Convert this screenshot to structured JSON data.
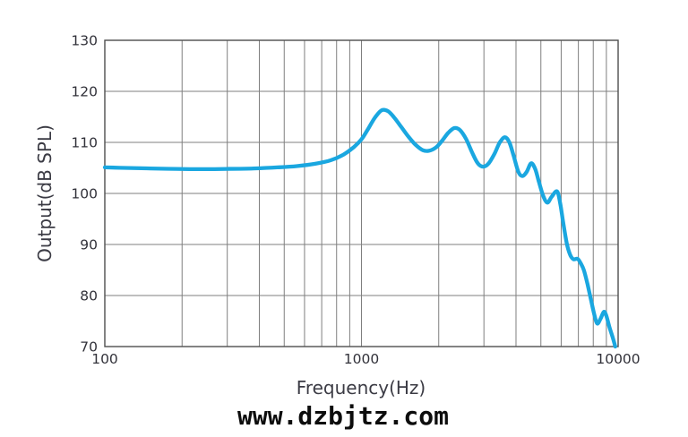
{
  "watermark": {
    "text": "www.dzbjtz.com"
  },
  "chart_data": {
    "type": "line",
    "xlabel": "Frequency(Hz)",
    "ylabel": "Output(dB SPL)",
    "x_scale": "log",
    "xlim": [
      100,
      10000
    ],
    "ylim": [
      70,
      130
    ],
    "yticks": [
      70,
      80,
      90,
      100,
      110,
      120,
      130
    ],
    "xticks": [
      {
        "value": 100,
        "label": "100"
      },
      {
        "value": 1000,
        "label": "1000"
      },
      {
        "value": 10000,
        "label": "10000"
      }
    ],
    "grid": true,
    "x_minor_gridlines": true,
    "legend": "none",
    "colors": {
      "curve": "#1aa7e0",
      "grid": "#7f7f7f",
      "border": "#4e4e4e",
      "tick_text": "#32323a",
      "title_text": "#3b3b44",
      "watermark_text": "#0d0d0d",
      "background": "#ffffff"
    },
    "series": [
      {
        "name": "output",
        "color": "#1aa7e0",
        "points": [
          [
            100,
            105.1
          ],
          [
            120,
            105.0
          ],
          [
            150,
            104.9
          ],
          [
            190,
            104.8
          ],
          [
            240,
            104.75
          ],
          [
            300,
            104.8
          ],
          [
            380,
            104.9
          ],
          [
            470,
            105.1
          ],
          [
            560,
            105.35
          ],
          [
            660,
            105.8
          ],
          [
            760,
            106.5
          ],
          [
            850,
            107.6
          ],
          [
            930,
            109.0
          ],
          [
            1000,
            110.6
          ],
          [
            1060,
            112.6
          ],
          [
            1130,
            114.9
          ],
          [
            1200,
            116.3
          ],
          [
            1270,
            116.1
          ],
          [
            1340,
            114.9
          ],
          [
            1430,
            113.0
          ],
          [
            1520,
            111.2
          ],
          [
            1620,
            109.6
          ],
          [
            1730,
            108.5
          ],
          [
            1830,
            108.35
          ],
          [
            1950,
            109.0
          ],
          [
            2060,
            110.3
          ],
          [
            2180,
            111.9
          ],
          [
            2300,
            112.8
          ],
          [
            2420,
            112.4
          ],
          [
            2560,
            110.6
          ],
          [
            2700,
            108.0
          ],
          [
            2840,
            105.9
          ],
          [
            2980,
            105.25
          ],
          [
            3130,
            105.9
          ],
          [
            3300,
            107.8
          ],
          [
            3460,
            110.0
          ],
          [
            3620,
            111.0
          ],
          [
            3770,
            110.0
          ],
          [
            3920,
            107.3
          ],
          [
            4080,
            104.3
          ],
          [
            4230,
            103.4
          ],
          [
            4400,
            104.2
          ],
          [
            4580,
            105.9
          ],
          [
            4750,
            104.8
          ],
          [
            4900,
            102.5
          ],
          [
            5100,
            99.6
          ],
          [
            5300,
            98.2
          ],
          [
            5500,
            99.3
          ],
          [
            5780,
            100.4
          ],
          [
            5950,
            98.0
          ],
          [
            6100,
            94.5
          ],
          [
            6310,
            90.2
          ],
          [
            6500,
            88.0
          ],
          [
            6700,
            87.1
          ],
          [
            6950,
            87.2
          ],
          [
            7150,
            86.3
          ],
          [
            7350,
            85.0
          ],
          [
            7600,
            82.2
          ],
          [
            7850,
            79.0
          ],
          [
            8100,
            76.0
          ],
          [
            8300,
            74.5
          ],
          [
            8550,
            75.5
          ],
          [
            8800,
            76.8
          ],
          [
            9000,
            76.0
          ],
          [
            9250,
            73.8
          ],
          [
            9500,
            72.0
          ],
          [
            9750,
            70.0
          ]
        ]
      }
    ]
  }
}
